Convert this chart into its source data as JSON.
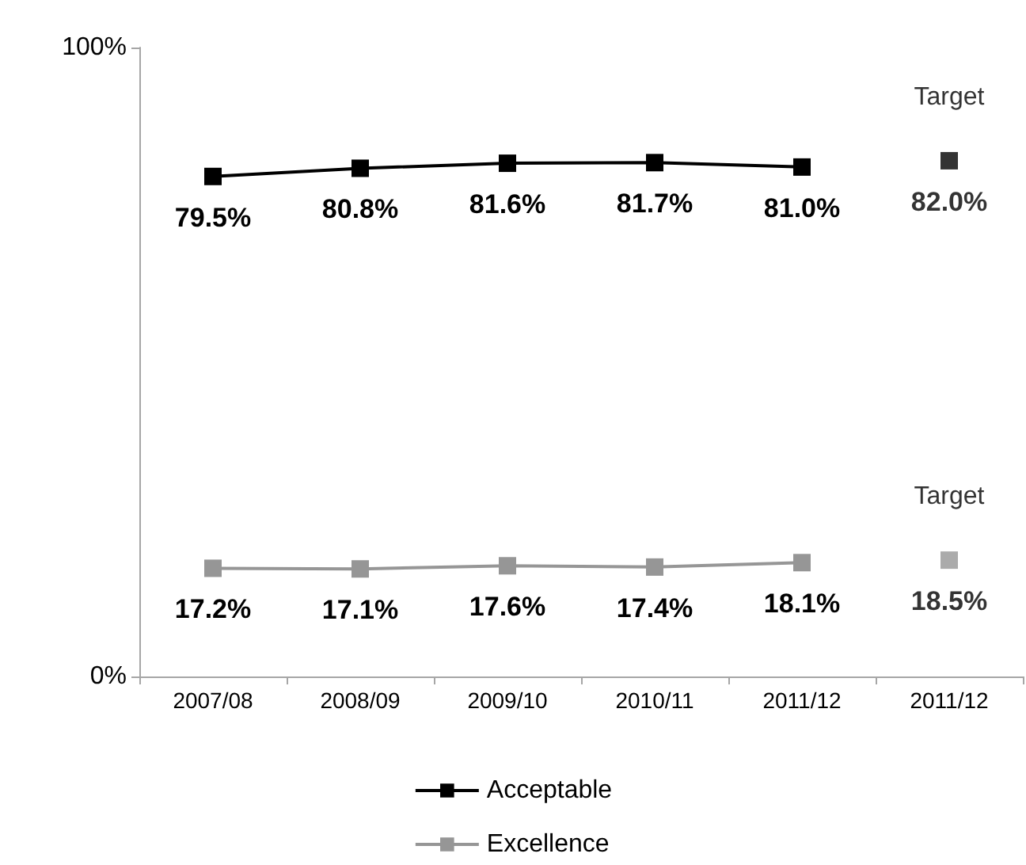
{
  "chart_data": {
    "type": "line",
    "categories": [
      "2007/08",
      "2008/09",
      "2009/10",
      "2010/11",
      "2011/12",
      "2011/12"
    ],
    "ylim": [
      0,
      100
    ],
    "yticks": [
      {
        "value": 0,
        "label": "0%"
      },
      {
        "value": 100,
        "label": "100%"
      }
    ],
    "series": [
      {
        "name": "Acceptable",
        "color": "#000000",
        "values": [
          79.5,
          80.8,
          81.6,
          81.7,
          81.0,
          null
        ],
        "value_labels": [
          "79.5%",
          "80.8%",
          "81.6%",
          "81.7%",
          "81.0%",
          null
        ]
      },
      {
        "name": "Excellence",
        "color": "#969696",
        "values": [
          17.2,
          17.1,
          17.6,
          17.4,
          18.1,
          null
        ],
        "value_labels": [
          "17.2%",
          "17.1%",
          "17.6%",
          "17.4%",
          "18.1%",
          null
        ]
      },
      {
        "name": "Target",
        "type": "scatter",
        "color": "#000000",
        "values": [
          null,
          null,
          null,
          null,
          null,
          82.0
        ],
        "value_labels": [
          null,
          null,
          null,
          null,
          null,
          "82.0%"
        ]
      },
      {
        "name": "Target",
        "type": "scatter",
        "color": "#969696",
        "values": [
          null,
          null,
          null,
          null,
          null,
          18.5
        ],
        "value_labels": [
          null,
          null,
          null,
          null,
          null,
          "18.5%"
        ]
      }
    ],
    "marker": "square",
    "line_style": "solid",
    "grid": false,
    "legend": "bottom"
  }
}
